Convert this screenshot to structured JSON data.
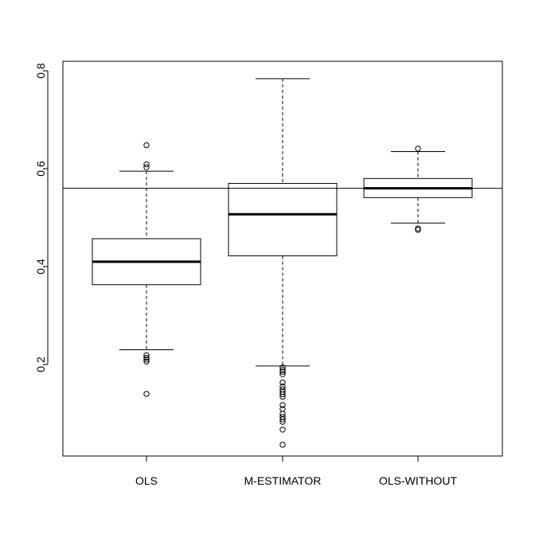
{
  "chart_data": {
    "type": "boxplot",
    "title": "",
    "xlabel": "",
    "ylabel": "",
    "ylim": [
      0.0,
      0.8
    ],
    "y_ticks": [
      "0.2",
      "0.4",
      "0.6",
      "0.8"
    ],
    "grid": false,
    "reference_line": 0.56,
    "categories": [
      "OLS",
      "M-ESTIMATOR",
      "OLS-WITHOUT"
    ],
    "boxes": [
      {
        "name": "OLS",
        "whisker_low": 0.23,
        "q1": 0.363,
        "median": 0.41,
        "q3": 0.457,
        "whisker_high": 0.595,
        "outliers": [
          0.648,
          0.609,
          0.603,
          0.219,
          0.214,
          0.21,
          0.206,
          0.14
        ]
      },
      {
        "name": "M-ESTIMATOR",
        "whisker_low": 0.197,
        "q1": 0.422,
        "median": 0.507,
        "q3": 0.57,
        "whisker_high": 0.784,
        "outliers": [
          0.194,
          0.189,
          0.185,
          0.18,
          0.163,
          0.155,
          0.149,
          0.144,
          0.139,
          0.134,
          0.117,
          0.109,
          0.099,
          0.093,
          0.088,
          0.083,
          0.067,
          0.036
        ]
      },
      {
        "name": "OLS-WITHOUT",
        "whisker_low": 0.489,
        "q1": 0.541,
        "median": 0.56,
        "q3": 0.58,
        "whisker_high": 0.635,
        "outliers": [
          0.641,
          0.478,
          0.475
        ]
      }
    ]
  }
}
